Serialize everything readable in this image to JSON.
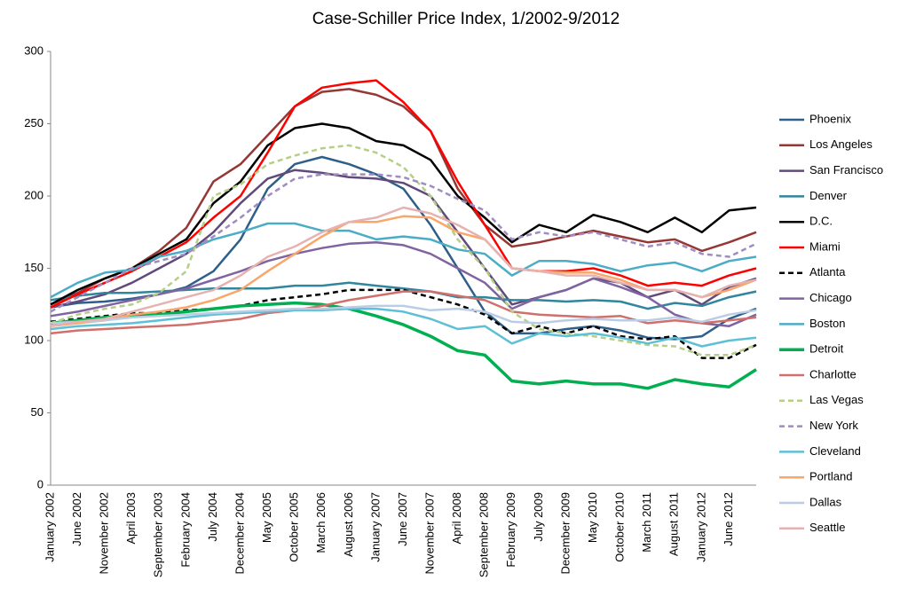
{
  "chart_data": {
    "type": "line",
    "title": "Case-Schiller Price Index, 1/2002-9/2012",
    "categories": [
      "January 2002",
      "June 2002",
      "November 2002",
      "April 2003",
      "September 2003",
      "February 2004",
      "July 2004",
      "December 2004",
      "May 2005",
      "October 2005",
      "March 2006",
      "August 2006",
      "January 2007",
      "June 2007",
      "November 2007",
      "April 2008",
      "September 2008",
      "February 2009",
      "July 2009",
      "December 2009",
      "May 2010",
      "October 2010",
      "March 2011",
      "August 2011",
      "January 2012",
      "June 2012",
      null
    ],
    "ylim": [
      0,
      300
    ],
    "yticks": [
      0,
      50,
      100,
      150,
      200,
      250,
      300
    ],
    "grid": false,
    "legend": "right",
    "series": [
      {
        "name": "Phoenix",
        "color": "#2e5f8a",
        "style": "solid",
        "values": [
          123,
          126,
          127,
          129,
          132,
          137,
          148,
          170,
          205,
          222,
          227,
          222,
          215,
          205,
          180,
          150,
          120,
          105,
          105,
          108,
          110,
          107,
          102,
          101,
          103,
          115,
          122
        ]
      },
      {
        "name": "Los Angeles",
        "color": "#953735",
        "style": "solid",
        "values": [
          125,
          133,
          143,
          150,
          162,
          178,
          210,
          222,
          242,
          262,
          272,
          274,
          270,
          262,
          245,
          205,
          180,
          165,
          168,
          172,
          176,
          172,
          168,
          170,
          162,
          168,
          175
        ]
      },
      {
        "name": "San Francisco",
        "color": "#604a7b",
        "style": "solid",
        "values": [
          123,
          127,
          132,
          140,
          150,
          160,
          175,
          195,
          212,
          218,
          216,
          213,
          212,
          209,
          200,
          175,
          150,
          125,
          130,
          135,
          143,
          140,
          130,
          135,
          125,
          137,
          143
        ]
      },
      {
        "name": "Denver",
        "color": "#31859c",
        "style": "solid",
        "values": [
          128,
          131,
          133,
          133,
          134,
          135,
          136,
          136,
          136,
          138,
          138,
          140,
          138,
          136,
          134,
          130,
          130,
          128,
          128,
          127,
          128,
          127,
          122,
          126,
          124,
          130,
          134
        ]
      },
      {
        "name": "D.C.",
        "color": "#000000",
        "style": "solid",
        "values": [
          125,
          135,
          143,
          150,
          160,
          170,
          195,
          210,
          235,
          247,
          250,
          247,
          238,
          235,
          225,
          200,
          185,
          168,
          180,
          175,
          187,
          182,
          175,
          185,
          175,
          190,
          192
        ]
      },
      {
        "name": "Miami",
        "color": "#ff0000",
        "style": "solid",
        "values": [
          123,
          132,
          140,
          148,
          158,
          168,
          185,
          200,
          230,
          262,
          275,
          278,
          280,
          265,
          245,
          210,
          180,
          150,
          148,
          148,
          150,
          145,
          138,
          140,
          138,
          145,
          150
        ]
      },
      {
        "name": "Atlanta",
        "color": "#000000",
        "style": "dashed",
        "values": [
          113,
          115,
          117,
          119,
          119,
          121,
          122,
          124,
          128,
          130,
          132,
          135,
          135,
          135,
          130,
          125,
          118,
          105,
          110,
          105,
          110,
          103,
          101,
          103,
          88,
          88,
          97
        ]
      },
      {
        "name": "Chicago",
        "color": "#8064a2",
        "style": "solid",
        "values": [
          117,
          120,
          124,
          128,
          132,
          136,
          142,
          148,
          155,
          160,
          164,
          167,
          168,
          166,
          160,
          150,
          140,
          122,
          130,
          135,
          143,
          137,
          130,
          118,
          112,
          110,
          118
        ]
      },
      {
        "name": "Boston",
        "color": "#4bacc6",
        "style": "solid",
        "values": [
          130,
          140,
          147,
          149,
          158,
          162,
          170,
          175,
          181,
          181,
          176,
          176,
          170,
          172,
          170,
          163,
          160,
          145,
          155,
          155,
          153,
          148,
          152,
          154,
          148,
          155,
          158
        ]
      },
      {
        "name": "Detroit",
        "color": "#00b050",
        "style": "thick",
        "values": [
          112,
          114,
          116,
          117,
          118,
          120,
          122,
          124,
          125,
          126,
          125,
          122,
          117,
          111,
          103,
          93,
          90,
          72,
          70,
          72,
          70,
          70,
          67,
          73,
          70,
          68,
          80
        ]
      },
      {
        "name": "Charlotte",
        "color": "#d0706c",
        "style": "solid",
        "values": [
          105,
          107,
          108,
          109,
          110,
          111,
          113,
          115,
          119,
          121,
          124,
          128,
          131,
          134,
          134,
          131,
          128,
          120,
          118,
          117,
          116,
          117,
          112,
          114,
          112,
          114,
          116
        ]
      },
      {
        "name": "Las Vegas",
        "color": "#b5cf86",
        "style": "dashed",
        "values": [
          112,
          118,
          122,
          125,
          133,
          148,
          200,
          208,
          222,
          228,
          233,
          235,
          230,
          220,
          200,
          170,
          150,
          120,
          108,
          105,
          103,
          100,
          97,
          96,
          90,
          90,
          97
        ]
      },
      {
        "name": "New York",
        "color": "#a08cc0",
        "style": "dashed",
        "values": [
          120,
          130,
          140,
          150,
          155,
          160,
          172,
          185,
          200,
          212,
          215,
          215,
          215,
          213,
          207,
          198,
          190,
          170,
          175,
          172,
          175,
          170,
          165,
          168,
          160,
          158,
          167
        ]
      },
      {
        "name": "Cleveland",
        "color": "#5ec0d6",
        "style": "solid",
        "values": [
          108,
          110,
          111,
          112,
          114,
          116,
          118,
          119,
          120,
          121,
          121,
          122,
          122,
          120,
          115,
          108,
          110,
          98,
          105,
          103,
          105,
          102,
          98,
          102,
          96,
          100,
          102
        ]
      },
      {
        "name": "Portland",
        "color": "#f9a66a",
        "style": "solid",
        "values": [
          110,
          112,
          114,
          118,
          120,
          123,
          128,
          135,
          148,
          160,
          172,
          182,
          182,
          186,
          185,
          175,
          170,
          150,
          148,
          147,
          147,
          142,
          135,
          135,
          130,
          135,
          142
        ]
      },
      {
        "name": "Dallas",
        "color": "#b9cde5",
        "style": "solid",
        "values": [
          112,
          113,
          114,
          116,
          117,
          118,
          119,
          120,
          121,
          122,
          122,
          123,
          124,
          124,
          121,
          122,
          120,
          113,
          112,
          114,
          115,
          114,
          114,
          116,
          113,
          118,
          121
        ]
      },
      {
        "name": "Seattle",
        "color": "#e6b2b1",
        "style": "solid",
        "values": [
          110,
          113,
          115,
          120,
          125,
          130,
          135,
          145,
          158,
          165,
          175,
          182,
          185,
          192,
          188,
          180,
          170,
          150,
          148,
          145,
          145,
          140,
          135,
          135,
          130,
          138,
          142
        ]
      }
    ]
  }
}
